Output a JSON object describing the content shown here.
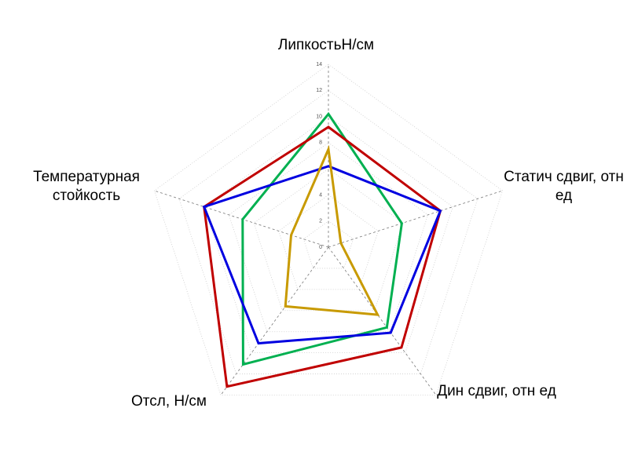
{
  "chart_data": {
    "type": "radar",
    "categories": [
      "ЛипкостьН/см",
      "Статич сдвиг, отн ед",
      "Дин сдвиг, отн ед",
      "Отсл, Н/см",
      "Температурная стойкость"
    ],
    "series": [
      {
        "color": "#00b050",
        "values": [
          10.2,
          5.9,
          7.6,
          11.1,
          6.9
        ]
      },
      {
        "color": "#c00000",
        "values": [
          9.2,
          9.0,
          9.5,
          13.2,
          10.0
        ]
      },
      {
        "color": "#0000e0",
        "values": [
          6.2,
          9.0,
          8.1,
          9.1,
          10.0
        ]
      },
      {
        "color": "#c89a00",
        "values": [
          7.5,
          1.0,
          6.4,
          5.6,
          3.0
        ]
      }
    ],
    "ylim": [
      0,
      14
    ],
    "yticks": [
      0,
      2,
      4,
      6,
      8,
      10,
      12,
      14
    ],
    "grid": true
  }
}
